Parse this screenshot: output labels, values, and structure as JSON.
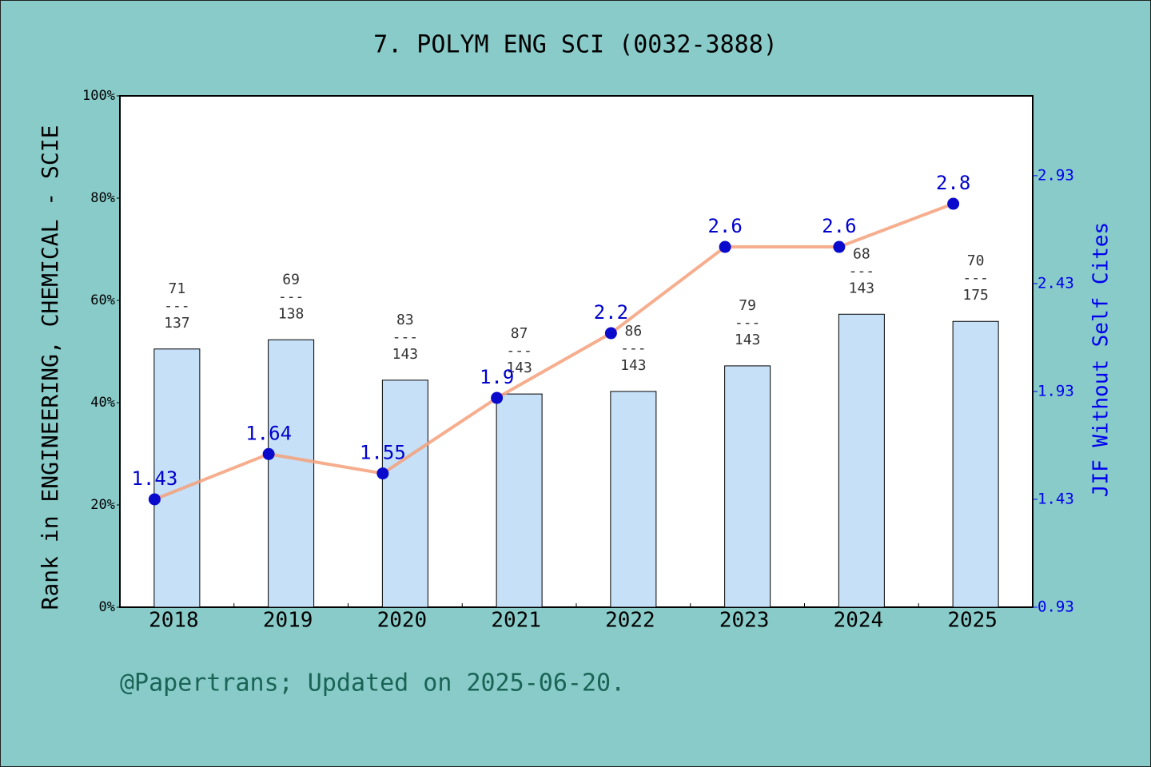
{
  "chart_data": {
    "type": "combo",
    "title": "7. POLYM ENG SCI (0032-3888)",
    "ylabel": "Rank in ENGINEERING, CHEMICAL - SCIE",
    "y2label": "JIF Without Self Cites",
    "annotation": "@Papertrans; Updated on 2025-06-20.",
    "categories": [
      "2018",
      "2019",
      "2020",
      "2021",
      "2022",
      "2023",
      "2024",
      "2025"
    ],
    "values": [
      50.5,
      52.3,
      44.4,
      41.7,
      42.2,
      47.2,
      57.3,
      55.9
    ],
    "color": "#c5e0f7",
    "rank_labels": [
      [
        "71",
        "---",
        "137"
      ],
      [
        "69",
        "---",
        "138"
      ],
      [
        "83",
        "---",
        "143"
      ],
      [
        "87",
        "---",
        "143"
      ],
      [
        "86",
        "---",
        "143"
      ],
      [
        "79",
        "---",
        "143"
      ],
      [
        "68",
        "---",
        "143"
      ],
      [
        "70",
        "---",
        "175"
      ]
    ],
    "ylim": [
      0,
      100
    ],
    "yticks": [
      {
        "value": 0,
        "label": "0%"
      },
      {
        "value": 20,
        "label": "20%"
      },
      {
        "value": 40,
        "label": "40%"
      },
      {
        "value": 60,
        "label": "60%"
      },
      {
        "value": 80,
        "label": "80%"
      },
      {
        "value": 100,
        "label": "100%"
      }
    ],
    "line": {
      "type": "line",
      "axis": "y2",
      "color": "#f4a07a",
      "marker_color": "#0a0acc",
      "values": [
        1.43,
        1.64,
        1.55,
        1.9,
        2.2,
        2.6,
        2.6,
        2.8
      ]
    },
    "y2lim": [
      0.93,
      3.3
    ],
    "y2ticks": [
      0.93,
      1.43,
      1.93,
      2.43,
      2.93
    ]
  }
}
